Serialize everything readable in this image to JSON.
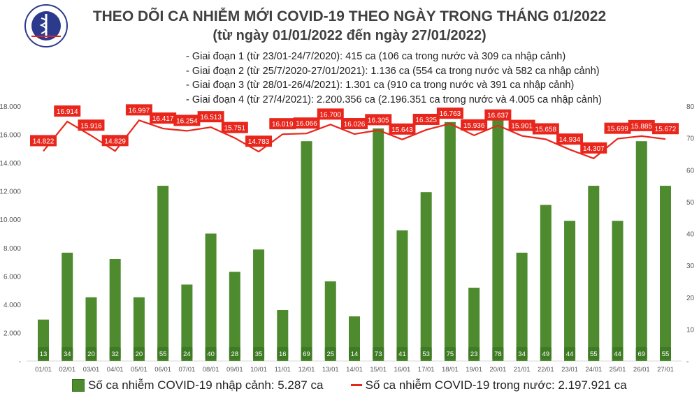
{
  "title": "THEO DÕI CA NHIỄM MỚI COVID-19 THEO NGÀY TRONG THÁNG 01/2022",
  "subtitle": "(từ ngày 01/01/2022 đến ngày 27/01/2022)",
  "notes": [
    "- Giai đoạn 1 (từ 23/01-24/7/2020): 415 ca (106 ca trong nước và 309 ca nhập cảnh)",
    "- Giai đoạn 2 (từ 25/7/2020-27/01/2021): 1.136 ca (554 ca trong nước và 582 ca nhập cảnh)",
    "- Giai đoạn 3 (từ 28/01-26/4/2021): 1.301 ca (910 ca trong nước và 391 ca nhập cảnh)",
    "- Giai đoạn 4 (từ 27/4/2021): 2.200.356 ca (2.196.351 ca trong nước và 4.005 ca nhập cảnh)"
  ],
  "logo_text": "BỘ Y TẾ MINISTRY OF HEALTH",
  "chart_data": {
    "type": "bar+line",
    "categories": [
      "01/01",
      "02/01",
      "03/01",
      "04/01",
      "05/01",
      "06/01",
      "07/01",
      "08/01",
      "09/01",
      "10/01",
      "11/01",
      "12/01",
      "13/01",
      "14/01",
      "15/01",
      "16/01",
      "17/01",
      "18/01",
      "19/01",
      "20/01",
      "21/01",
      "22/01",
      "23/01",
      "24/01",
      "25/01",
      "26/01",
      "27/01"
    ],
    "series": [
      {
        "name": "Số ca nhiễm COVID-19 nhập cảnh: 5.287 ca",
        "type": "bar",
        "axis": "right",
        "color": "#4e8a2e",
        "values": [
          13,
          34,
          20,
          32,
          20,
          55,
          24,
          40,
          28,
          35,
          16,
          69,
          25,
          14,
          73,
          41,
          53,
          75,
          23,
          78,
          34,
          49,
          44,
          55,
          44,
          69,
          55
        ]
      },
      {
        "name": "Số ca nhiễm COVID-19 trong nước: 2.197.921 ca",
        "type": "line",
        "axis": "left",
        "color": "#e8261c",
        "values": [
          14822,
          16914,
          15916,
          14829,
          16997,
          16417,
          16254,
          16513,
          15751,
          14783,
          16019,
          16066,
          16700,
          16026,
          16305,
          15643,
          16325,
          16763,
          15936,
          16637,
          15901,
          15658,
          14934,
          14307,
          15699,
          15885,
          15672
        ]
      }
    ],
    "left_axis": {
      "ylim": [
        0,
        18000
      ],
      "ticks": [
        "-",
        "2.000",
        "4.000",
        "6.000",
        "8.000",
        "10.000",
        "12.000",
        "14.000",
        "16.000",
        "18.000"
      ]
    },
    "right_axis": {
      "ylim": [
        0,
        80
      ],
      "ticks": [
        "-",
        "10",
        "20",
        "30",
        "40",
        "50",
        "60",
        "70",
        "80"
      ]
    },
    "grid": false,
    "legend": "bottom"
  }
}
